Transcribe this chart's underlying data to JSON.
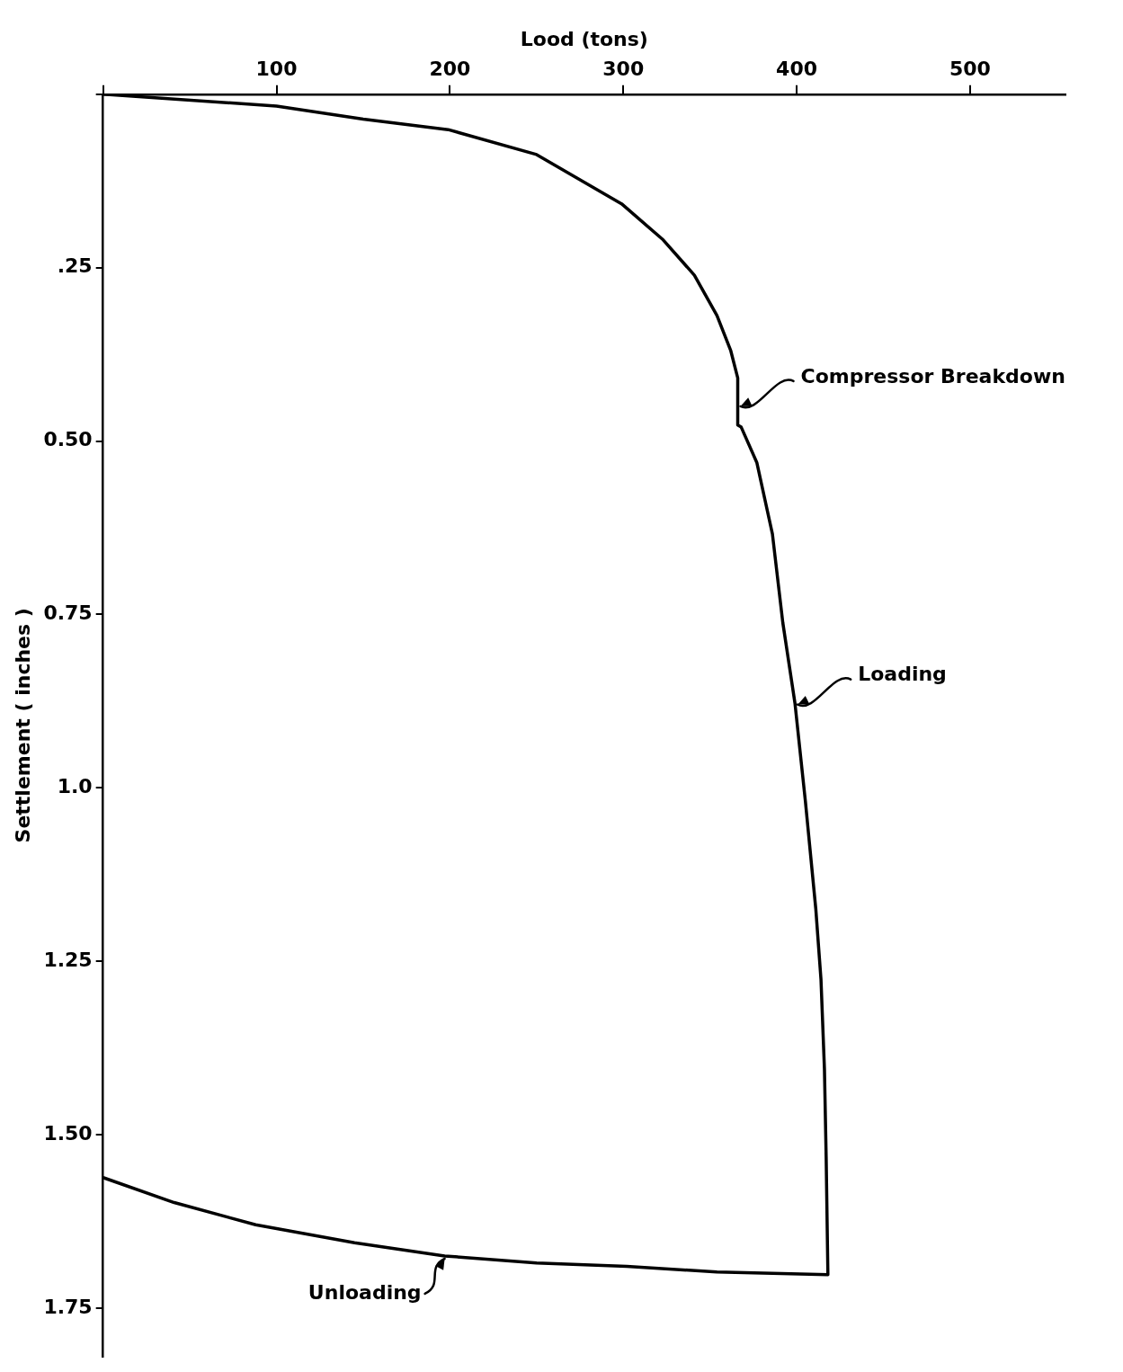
{
  "chart_data": {
    "type": "line",
    "xlabel": "Lood (tons)",
    "ylabel": "Settlement ( inches )",
    "xlim": [
      0,
      555
    ],
    "xticks": [
      {
        "value": 0,
        "label": null
      },
      100,
      200,
      300,
      400,
      500
    ],
    "ylim": [
      1.82,
      0
    ],
    "yticks": [
      {
        "value": 0,
        "label": null
      },
      {
        "value": 0.25,
        "label": ".25"
      },
      {
        "value": 0.5,
        "label": "0.50"
      },
      0.75,
      {
        "value": 1,
        "label": "1.0"
      },
      1.25,
      {
        "value": 1.5,
        "label": "1.50"
      },
      1.75
    ],
    "grid": false,
    "legend": false,
    "marker": "none",
    "line_style": "solid",
    "x": [
      0,
      100,
      150,
      199,
      250,
      299,
      323,
      341,
      354,
      362,
      366,
      366,
      368,
      377,
      386,
      392,
      399,
      405,
      411,
      414,
      416,
      417,
      418,
      354,
      302,
      250,
      197,
      145,
      88,
      41,
      0
    ],
    "series": [
      {
        "color": "#000000",
        "values": [
          0,
          0.017,
          0.036,
          0.051,
          0.087,
          0.158,
          0.21,
          0.261,
          0.319,
          0.37,
          0.409,
          0.477,
          0.48,
          0.531,
          0.634,
          0.762,
          0.878,
          1.019,
          1.174,
          1.276,
          1.405,
          1.533,
          1.702,
          1.698,
          1.69,
          1.685,
          1.675,
          1.656,
          1.63,
          1.598,
          1.562
        ]
      }
    ],
    "annotations": [
      {
        "text": "Compressor Breakdown",
        "x": 366,
        "y": 0.45
      },
      {
        "text": "Loading",
        "x": 399,
        "y": 0.88
      },
      {
        "text": "Unloading",
        "x": 197,
        "y": 1.675
      }
    ]
  }
}
